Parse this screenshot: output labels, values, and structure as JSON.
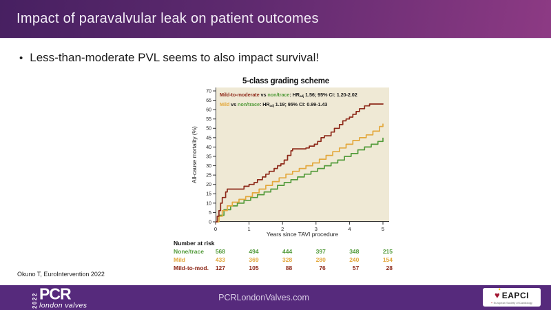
{
  "header": {
    "title": "Impact of paravalvular leak on patient outcomes"
  },
  "bullet": "Less-than-moderate PVL seems to also impact survival!",
  "citation": "Okuno T, EuroIntervention 2022",
  "footer": {
    "website": "PCRLondonValves.com",
    "pcr_logo": {
      "year": "2022",
      "brand": "PCR",
      "tagline": "london valves"
    },
    "eapci": {
      "name": "EAPCI",
      "tagline": "European Society of Cardiology"
    }
  },
  "colors": {
    "header_gradient_left": "#472061",
    "header_gradient_right": "#8d3a84",
    "footer_bg": "#562a7c",
    "plot_bg": "#efe9d5",
    "axis": "#333333",
    "none_trace": "#539b3b",
    "mild": "#e3a83d",
    "mild_to_moderate": "#8e2a1a",
    "eapci_heart": "#a21833"
  },
  "chart_data": {
    "type": "line",
    "step": true,
    "title": "5-class grading scheme",
    "xlabel": "Years since TAVI procedure",
    "ylabel": "All-cause mortality (%)",
    "xlim": [
      0,
      5
    ],
    "ylim": [
      0,
      70
    ],
    "xticks": [
      0,
      1,
      2,
      3,
      4,
      5
    ],
    "yticks": [
      0,
      5,
      10,
      15,
      20,
      25,
      30,
      35,
      40,
      45,
      50,
      55,
      60,
      65,
      70
    ],
    "grid": false,
    "legend_position": "top-left annotations inside plot",
    "series": [
      {
        "name": "None/trace",
        "color_key": "none_trace",
        "x": [
          0,
          0.1,
          0.25,
          0.45,
          0.65,
          0.85,
          1.05,
          1.25,
          1.45,
          1.65,
          1.85,
          2.05,
          2.25,
          2.45,
          2.65,
          2.85,
          3.05,
          3.25,
          3.45,
          3.65,
          3.85,
          4.05,
          4.25,
          4.45,
          4.65,
          4.85,
          5.0
        ],
        "y": [
          0,
          3.5,
          6.5,
          8.5,
          10,
          11.5,
          13,
          14.5,
          16,
          17.5,
          19.5,
          21,
          22.5,
          24,
          25.5,
          27,
          28.5,
          30,
          31.5,
          33,
          35,
          36.5,
          38.5,
          40,
          41.5,
          43,
          45
        ]
      },
      {
        "name": "Mild",
        "color_key": "mild",
        "x": [
          0,
          0.1,
          0.2,
          0.35,
          0.5,
          0.7,
          0.9,
          1.1,
          1.3,
          1.5,
          1.7,
          1.9,
          2.1,
          2.3,
          2.5,
          2.7,
          2.9,
          3.1,
          3.3,
          3.5,
          3.7,
          3.9,
          4.1,
          4.3,
          4.5,
          4.7,
          4.9,
          5.0
        ],
        "y": [
          0,
          3,
          6,
          8.5,
          10.5,
          12,
          13.5,
          15.5,
          17.5,
          19.5,
          21.5,
          23.5,
          25.5,
          27,
          28.5,
          30,
          31.5,
          33.5,
          35.5,
          37.5,
          39.5,
          41.5,
          43.5,
          45,
          46.5,
          48.5,
          51,
          52.5
        ]
      },
      {
        "name": "Mild-to-mod.",
        "color_key": "mild_to_moderate",
        "x": [
          0,
          0.05,
          0.1,
          0.15,
          0.2,
          0.3,
          0.35,
          0.75,
          0.85,
          1.0,
          1.15,
          1.25,
          1.4,
          1.5,
          1.6,
          1.75,
          1.85,
          1.95,
          2.05,
          2.15,
          2.25,
          2.3,
          2.7,
          2.8,
          2.95,
          3.05,
          3.15,
          3.25,
          3.45,
          3.55,
          3.7,
          3.8,
          3.9,
          4.0,
          4.1,
          4.2,
          4.3,
          4.45,
          4.6,
          5.0
        ],
        "y": [
          0,
          3,
          6,
          10,
          13,
          16,
          17.5,
          17.5,
          19,
          20,
          21,
          22.5,
          24,
          25.5,
          27,
          28.5,
          30,
          31,
          33,
          35.5,
          38,
          39,
          39.5,
          40.5,
          41.5,
          43,
          45,
          46,
          48,
          50,
          52,
          54,
          55,
          56,
          57.5,
          59,
          60.5,
          62,
          63,
          63.3
        ]
      }
    ],
    "annotations": [
      {
        "parts": [
          {
            "t": "Mild-to-moderate",
            "color_key": "mild_to_moderate"
          },
          {
            "t": " vs "
          },
          {
            "t": "non/trace",
            "color_key": "none_trace"
          },
          {
            "t": ": HR"
          },
          {
            "t": "adj",
            "sub": true
          },
          {
            "t": " 1.56; 95% CI: 1.20-2.02"
          }
        ]
      },
      {
        "parts": [
          {
            "t": "Mild",
            "color_key": "mild"
          },
          {
            "t": " vs "
          },
          {
            "t": "non/trace",
            "color_key": "none_trace"
          },
          {
            "t": ": HR"
          },
          {
            "t": "adj",
            "sub": true
          },
          {
            "t": " 1.19; 95% CI: 0.99-1.43"
          }
        ]
      }
    ],
    "number_at_risk": {
      "label": "Number at risk",
      "rows": [
        {
          "name": "None/trace",
          "color_key": "none_trace",
          "values": [
            "568",
            "494",
            "444",
            "397",
            "348",
            "215"
          ]
        },
        {
          "name": "Mild",
          "color_key": "mild",
          "values": [
            "433",
            "369",
            "328",
            "280",
            "240",
            "154"
          ]
        },
        {
          "name": "Mild-to-mod.",
          "color_key": "mild_to_moderate",
          "values": [
            "127",
            "105",
            "88",
            "76",
            "57",
            "28"
          ]
        }
      ]
    }
  }
}
